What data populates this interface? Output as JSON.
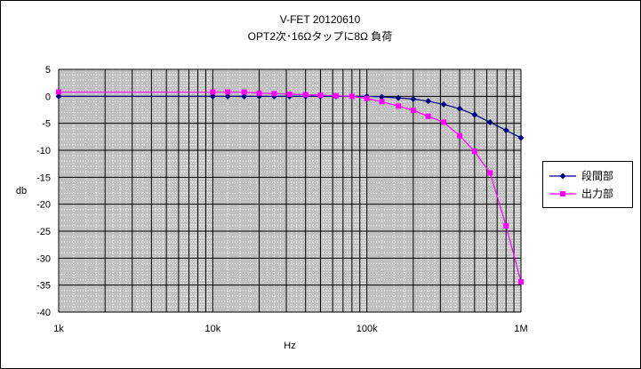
{
  "chart_data": {
    "type": "line",
    "title": "V-FET  20120610",
    "subtitle": "OPT2次･16Ωタップに8Ω 負荷",
    "xlabel": "Hz",
    "ylabel": "db",
    "x_scale": "log",
    "xlim": [
      1000,
      1000000
    ],
    "ylim": [
      -40,
      5
    ],
    "y_major_step": 5,
    "y_minor_step": 1,
    "x_tick_labels": [
      {
        "value": 1000,
        "label": "1k"
      },
      {
        "value": 10000,
        "label": "10k"
      },
      {
        "value": 100000,
        "label": "100k"
      },
      {
        "value": 1000000,
        "label": "1M"
      }
    ],
    "grid": true,
    "plot_background": "#c0c0c0",
    "legend_position": "right",
    "series": [
      {
        "name": "段間部",
        "color": "#000080",
        "marker": "diamond",
        "points": [
          [
            1000,
            0
          ],
          [
            10000,
            0
          ],
          [
            12500,
            0
          ],
          [
            16000,
            0
          ],
          [
            20000,
            0
          ],
          [
            25000,
            0
          ],
          [
            31500,
            0
          ],
          [
            40000,
            0
          ],
          [
            50000,
            0
          ],
          [
            63000,
            0
          ],
          [
            80000,
            0
          ],
          [
            100000,
            0
          ],
          [
            125000,
            -0.1
          ],
          [
            160000,
            -0.3
          ],
          [
            200000,
            -0.5
          ],
          [
            250000,
            -0.9
          ],
          [
            315000,
            -1.5
          ],
          [
            400000,
            -2.3
          ],
          [
            500000,
            -3.4
          ],
          [
            630000,
            -4.8
          ],
          [
            800000,
            -6.3
          ],
          [
            1000000,
            -7.7
          ]
        ]
      },
      {
        "name": "出力部",
        "color": "#ff00ff",
        "marker": "square",
        "points": [
          [
            1000,
            0.8
          ],
          [
            10000,
            0.8
          ],
          [
            12500,
            0.8
          ],
          [
            16000,
            0.8
          ],
          [
            20000,
            0.6
          ],
          [
            25000,
            0.5
          ],
          [
            31500,
            0.4
          ],
          [
            40000,
            0.3
          ],
          [
            50000,
            0.2
          ],
          [
            63000,
            0.1
          ],
          [
            80000,
            0
          ],
          [
            100000,
            -0.4
          ],
          [
            125000,
            -1
          ],
          [
            160000,
            -1.8
          ],
          [
            200000,
            -2.6
          ],
          [
            250000,
            -3.7
          ],
          [
            315000,
            -4.8
          ],
          [
            400000,
            -7.3
          ],
          [
            500000,
            -10.2
          ],
          [
            630000,
            -14.2
          ],
          [
            800000,
            -24
          ],
          [
            1000000,
            -34.4
          ]
        ]
      }
    ]
  }
}
